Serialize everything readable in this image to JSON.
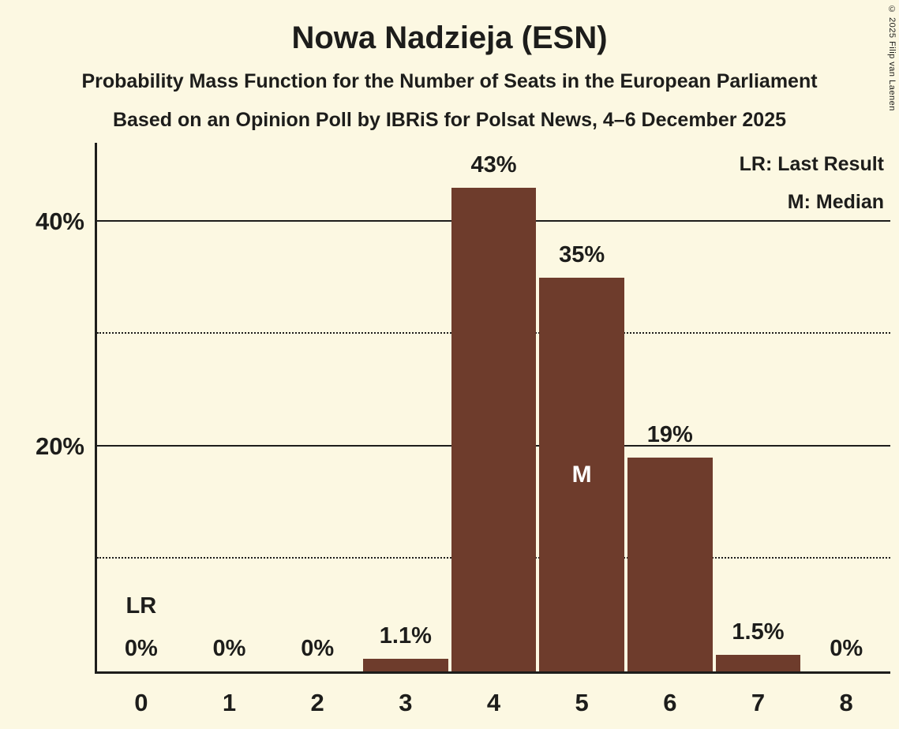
{
  "header": {
    "title": "Nowa Nadzieja (ESN)",
    "subtitle1": "Probability Mass Function for the Number of Seats in the European Parliament",
    "subtitle2": "Based on an Opinion Poll by IBRiS for Polsat News, 4–6 December 2025"
  },
  "legend": {
    "line1": "LR: Last Result",
    "line2": "M: Median"
  },
  "copyright": "© 2025 Filip van Laenen",
  "chart_data": {
    "type": "bar",
    "title": "Nowa Nadzieja (ESN)",
    "xlabel": "",
    "ylabel": "",
    "categories": [
      "0",
      "1",
      "2",
      "3",
      "4",
      "5",
      "6",
      "7",
      "8"
    ],
    "values": [
      0,
      0,
      0,
      1.1,
      43,
      35,
      19,
      1.5,
      0
    ],
    "bar_labels": [
      "0%",
      "0%",
      "0%",
      "1.1%",
      "43%",
      "35%",
      "19%",
      "1.5%",
      "0%"
    ],
    "ylim": [
      0,
      47
    ],
    "y_ticks": [
      {
        "value": 20,
        "label": "20%"
      },
      {
        "value": 40,
        "label": "40%"
      }
    ],
    "gridlines": [
      {
        "value": 10,
        "style": "dotted"
      },
      {
        "value": 20,
        "style": "solid"
      },
      {
        "value": 30,
        "style": "dotted"
      },
      {
        "value": 40,
        "style": "solid"
      }
    ],
    "annotations": {
      "last_result": {
        "category": "0",
        "label": "LR"
      },
      "median": {
        "category": "5",
        "label": "M"
      }
    },
    "legend_position": "top-right",
    "colors": {
      "bar": "#6e3c2c",
      "background": "#fcf8e2",
      "text": "#1d1d1b",
      "median_label": "#ffffff"
    }
  }
}
